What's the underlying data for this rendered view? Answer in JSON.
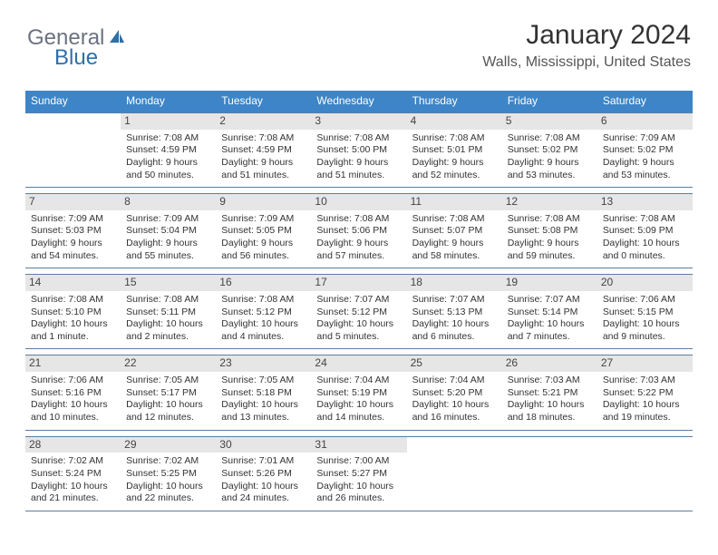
{
  "logo": {
    "text1": "General",
    "text2": "Blue"
  },
  "title": "January 2024",
  "location": "Walls, Mississippi, United States",
  "day_headers": [
    "Sunday",
    "Monday",
    "Tuesday",
    "Wednesday",
    "Thursday",
    "Friday",
    "Saturday"
  ],
  "colors": {
    "header_bg": "#3d85c6",
    "header_text": "#ffffff",
    "daynum_bg": "#e6e6e6",
    "border": "#5b7fa0",
    "logo_gray": "#6b7280",
    "logo_blue": "#2f6fa7"
  },
  "weeks": [
    [
      {
        "empty": true
      },
      {
        "n": "1",
        "sr": "Sunrise: 7:08 AM",
        "ss": "Sunset: 4:59 PM",
        "d1": "Daylight: 9 hours",
        "d2": "and 50 minutes."
      },
      {
        "n": "2",
        "sr": "Sunrise: 7:08 AM",
        "ss": "Sunset: 4:59 PM",
        "d1": "Daylight: 9 hours",
        "d2": "and 51 minutes."
      },
      {
        "n": "3",
        "sr": "Sunrise: 7:08 AM",
        "ss": "Sunset: 5:00 PM",
        "d1": "Daylight: 9 hours",
        "d2": "and 51 minutes."
      },
      {
        "n": "4",
        "sr": "Sunrise: 7:08 AM",
        "ss": "Sunset: 5:01 PM",
        "d1": "Daylight: 9 hours",
        "d2": "and 52 minutes."
      },
      {
        "n": "5",
        "sr": "Sunrise: 7:08 AM",
        "ss": "Sunset: 5:02 PM",
        "d1": "Daylight: 9 hours",
        "d2": "and 53 minutes."
      },
      {
        "n": "6",
        "sr": "Sunrise: 7:09 AM",
        "ss": "Sunset: 5:02 PM",
        "d1": "Daylight: 9 hours",
        "d2": "and 53 minutes."
      }
    ],
    [
      {
        "n": "7",
        "sr": "Sunrise: 7:09 AM",
        "ss": "Sunset: 5:03 PM",
        "d1": "Daylight: 9 hours",
        "d2": "and 54 minutes."
      },
      {
        "n": "8",
        "sr": "Sunrise: 7:09 AM",
        "ss": "Sunset: 5:04 PM",
        "d1": "Daylight: 9 hours",
        "d2": "and 55 minutes."
      },
      {
        "n": "9",
        "sr": "Sunrise: 7:09 AM",
        "ss": "Sunset: 5:05 PM",
        "d1": "Daylight: 9 hours",
        "d2": "and 56 minutes."
      },
      {
        "n": "10",
        "sr": "Sunrise: 7:08 AM",
        "ss": "Sunset: 5:06 PM",
        "d1": "Daylight: 9 hours",
        "d2": "and 57 minutes."
      },
      {
        "n": "11",
        "sr": "Sunrise: 7:08 AM",
        "ss": "Sunset: 5:07 PM",
        "d1": "Daylight: 9 hours",
        "d2": "and 58 minutes."
      },
      {
        "n": "12",
        "sr": "Sunrise: 7:08 AM",
        "ss": "Sunset: 5:08 PM",
        "d1": "Daylight: 9 hours",
        "d2": "and 59 minutes."
      },
      {
        "n": "13",
        "sr": "Sunrise: 7:08 AM",
        "ss": "Sunset: 5:09 PM",
        "d1": "Daylight: 10 hours",
        "d2": "and 0 minutes."
      }
    ],
    [
      {
        "n": "14",
        "sr": "Sunrise: 7:08 AM",
        "ss": "Sunset: 5:10 PM",
        "d1": "Daylight: 10 hours",
        "d2": "and 1 minute."
      },
      {
        "n": "15",
        "sr": "Sunrise: 7:08 AM",
        "ss": "Sunset: 5:11 PM",
        "d1": "Daylight: 10 hours",
        "d2": "and 2 minutes."
      },
      {
        "n": "16",
        "sr": "Sunrise: 7:08 AM",
        "ss": "Sunset: 5:12 PM",
        "d1": "Daylight: 10 hours",
        "d2": "and 4 minutes."
      },
      {
        "n": "17",
        "sr": "Sunrise: 7:07 AM",
        "ss": "Sunset: 5:12 PM",
        "d1": "Daylight: 10 hours",
        "d2": "and 5 minutes."
      },
      {
        "n": "18",
        "sr": "Sunrise: 7:07 AM",
        "ss": "Sunset: 5:13 PM",
        "d1": "Daylight: 10 hours",
        "d2": "and 6 minutes."
      },
      {
        "n": "19",
        "sr": "Sunrise: 7:07 AM",
        "ss": "Sunset: 5:14 PM",
        "d1": "Daylight: 10 hours",
        "d2": "and 7 minutes."
      },
      {
        "n": "20",
        "sr": "Sunrise: 7:06 AM",
        "ss": "Sunset: 5:15 PM",
        "d1": "Daylight: 10 hours",
        "d2": "and 9 minutes."
      }
    ],
    [
      {
        "n": "21",
        "sr": "Sunrise: 7:06 AM",
        "ss": "Sunset: 5:16 PM",
        "d1": "Daylight: 10 hours",
        "d2": "and 10 minutes."
      },
      {
        "n": "22",
        "sr": "Sunrise: 7:05 AM",
        "ss": "Sunset: 5:17 PM",
        "d1": "Daylight: 10 hours",
        "d2": "and 12 minutes."
      },
      {
        "n": "23",
        "sr": "Sunrise: 7:05 AM",
        "ss": "Sunset: 5:18 PM",
        "d1": "Daylight: 10 hours",
        "d2": "and 13 minutes."
      },
      {
        "n": "24",
        "sr": "Sunrise: 7:04 AM",
        "ss": "Sunset: 5:19 PM",
        "d1": "Daylight: 10 hours",
        "d2": "and 14 minutes."
      },
      {
        "n": "25",
        "sr": "Sunrise: 7:04 AM",
        "ss": "Sunset: 5:20 PM",
        "d1": "Daylight: 10 hours",
        "d2": "and 16 minutes."
      },
      {
        "n": "26",
        "sr": "Sunrise: 7:03 AM",
        "ss": "Sunset: 5:21 PM",
        "d1": "Daylight: 10 hours",
        "d2": "and 18 minutes."
      },
      {
        "n": "27",
        "sr": "Sunrise: 7:03 AM",
        "ss": "Sunset: 5:22 PM",
        "d1": "Daylight: 10 hours",
        "d2": "and 19 minutes."
      }
    ],
    [
      {
        "n": "28",
        "sr": "Sunrise: 7:02 AM",
        "ss": "Sunset: 5:24 PM",
        "d1": "Daylight: 10 hours",
        "d2": "and 21 minutes."
      },
      {
        "n": "29",
        "sr": "Sunrise: 7:02 AM",
        "ss": "Sunset: 5:25 PM",
        "d1": "Daylight: 10 hours",
        "d2": "and 22 minutes."
      },
      {
        "n": "30",
        "sr": "Sunrise: 7:01 AM",
        "ss": "Sunset: 5:26 PM",
        "d1": "Daylight: 10 hours",
        "d2": "and 24 minutes."
      },
      {
        "n": "31",
        "sr": "Sunrise: 7:00 AM",
        "ss": "Sunset: 5:27 PM",
        "d1": "Daylight: 10 hours",
        "d2": "and 26 minutes."
      },
      {
        "empty": true
      },
      {
        "empty": true
      },
      {
        "empty": true
      }
    ]
  ]
}
